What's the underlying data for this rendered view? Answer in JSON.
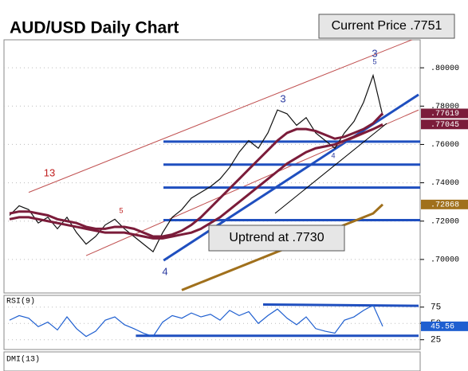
{
  "chart_data": [
    {
      "type": "line",
      "title": "AUD/USD Daily Chart",
      "annotations": [
        "Current Price .7751",
        "Uptrend at .7730"
      ],
      "wave_labels": [
        "3",
        "5",
        "13",
        "5",
        "3",
        "4",
        "4"
      ],
      "categories": [
        null,
        null,
        null,
        null,
        null,
        null,
        null,
        null,
        null,
        null,
        null,
        null,
        null,
        null,
        null,
        null,
        null,
        null,
        null,
        null,
        null,
        null,
        null,
        null,
        null,
        null,
        null,
        null,
        null,
        null,
        null,
        null,
        null,
        null,
        null,
        null,
        null,
        null,
        null,
        null
      ],
      "series": [
        {
          "color": "#111111",
          "values": [
            0.723,
            0.728,
            0.726,
            0.719,
            0.722,
            0.716,
            0.722,
            0.714,
            0.708,
            0.712,
            0.718,
            0.721,
            0.716,
            0.712,
            0.708,
            0.704,
            0.714,
            0.722,
            0.726,
            0.732,
            0.735,
            0.738,
            0.742,
            0.748,
            0.756,
            0.762,
            0.758,
            0.766,
            0.778,
            0.776,
            0.77,
            0.774,
            0.766,
            0.762,
            0.758,
            0.766,
            0.772,
            0.782,
            0.796,
            0.7751
          ]
        },
        {
          "color": "#7b1c3a",
          "values": [
            0.724,
            0.725,
            0.725,
            0.724,
            0.723,
            0.721,
            0.72,
            0.719,
            0.717,
            0.716,
            0.716,
            0.717,
            0.717,
            0.716,
            0.714,
            0.712,
            0.712,
            0.713,
            0.715,
            0.718,
            0.722,
            0.727,
            0.732,
            0.737,
            0.742,
            0.747,
            0.752,
            0.757,
            0.762,
            0.766,
            0.768,
            0.768,
            0.767,
            0.765,
            0.763,
            0.764,
            0.766,
            0.768,
            0.771,
            0.77619
          ],
          "value_labels": [
            null,
            null,
            null,
            null,
            null,
            null,
            null,
            null,
            null,
            null,
            null,
            null,
            null,
            null,
            null,
            null,
            null,
            null,
            null,
            null,
            null,
            null,
            null,
            null,
            null,
            null,
            null,
            null,
            null,
            null,
            null,
            null,
            null,
            null,
            null,
            null,
            null,
            null,
            null,
            ".77619"
          ]
        },
        {
          "color": "#7b1c3a",
          "values": [
            0.721,
            0.722,
            0.722,
            0.721,
            0.72,
            0.719,
            0.718,
            0.717,
            0.716,
            0.715,
            0.714,
            0.714,
            0.714,
            0.713,
            0.712,
            0.711,
            0.711,
            0.712,
            0.713,
            0.714,
            0.716,
            0.719,
            0.722,
            0.726,
            0.73,
            0.734,
            0.738,
            0.742,
            0.746,
            0.75,
            0.753,
            0.756,
            0.758,
            0.759,
            0.76,
            0.762,
            0.764,
            0.766,
            0.768,
            0.77045
          ],
          "value_labels": [
            null,
            null,
            null,
            null,
            null,
            null,
            null,
            null,
            null,
            null,
            null,
            null,
            null,
            null,
            null,
            null,
            null,
            null,
            null,
            null,
            null,
            null,
            null,
            null,
            null,
            null,
            null,
            null,
            null,
            null,
            null,
            null,
            null,
            null,
            null,
            null,
            null,
            null,
            null,
            ".77045"
          ]
        },
        {
          "color": "#a0701c",
          "values": [
            null,
            null,
            null,
            null,
            null,
            null,
            null,
            null,
            null,
            null,
            null,
            null,
            null,
            null,
            null,
            null,
            null,
            null,
            0.684,
            0.686,
            0.688,
            0.69,
            0.692,
            0.694,
            0.696,
            0.698,
            0.7,
            0.702,
            0.704,
            0.706,
            0.708,
            0.71,
            0.712,
            0.714,
            0.716,
            0.718,
            0.72,
            0.722,
            0.724,
            0.72868
          ],
          "value_labels": [
            null,
            null,
            null,
            null,
            null,
            null,
            null,
            null,
            null,
            null,
            null,
            null,
            null,
            null,
            null,
            null,
            null,
            null,
            null,
            null,
            null,
            null,
            null,
            null,
            null,
            null,
            null,
            null,
            null,
            null,
            null,
            null,
            null,
            null,
            null,
            null,
            null,
            null,
            null,
            ".72868"
          ]
        }
      ],
      "hlines": [
        0.7615,
        0.7495,
        0.7375,
        0.7205
      ],
      "hline_color": "#1f4fbf",
      "trendlines": [
        {
          "x": [
            16.1,
            42.75
          ],
          "y": [
            0.6995,
            0.786
          ],
          "color": "#1f4fbf"
        },
        {
          "x": [
            2,
            42.75
          ],
          "y": [
            0.735,
            0.816
          ],
          "color": "#c05050"
        },
        {
          "x": [
            8,
            42.75
          ],
          "y": [
            0.702,
            0.778
          ],
          "color": "#c05050"
        }
      ],
      "ylim": [
        0.6825,
        0.8146
      ],
      "yticks": [
        {
          "value": 0.7,
          "label": ".70000"
        },
        {
          "value": 0.72,
          "label": ".72000"
        },
        {
          "value": 0.74,
          "label": ".74000"
        },
        {
          "value": 0.76,
          "label": ".76000"
        },
        {
          "value": 0.78,
          "label": ".78000"
        },
        {
          "value": 0.8,
          "label": ".80000"
        }
      ]
    },
    {
      "type": "line",
      "title": "RSI(9)",
      "series": [
        {
          "color": "#1f5fd0",
          "values": [
            55,
            62,
            58,
            45,
            52,
            40,
            60,
            42,
            30,
            38,
            55,
            60,
            48,
            42,
            35,
            30,
            52,
            62,
            58,
            66,
            60,
            64,
            55,
            70,
            62,
            68,
            50,
            62,
            72,
            58,
            48,
            60,
            42,
            38,
            35,
            55,
            60,
            70,
            78,
            45.56
          ],
          "value_labels": [
            null,
            null,
            null,
            null,
            null,
            null,
            null,
            null,
            null,
            null,
            null,
            null,
            null,
            null,
            null,
            null,
            null,
            null,
            null,
            null,
            null,
            null,
            null,
            null,
            null,
            null,
            null,
            null,
            null,
            null,
            null,
            null,
            null,
            null,
            null,
            null,
            null,
            null,
            null,
            "45.56"
          ]
        }
      ],
      "trendlines": [
        {
          "x": [
            26.5,
            42.75
          ],
          "y": [
            79,
            77
          ],
          "color": "#1f4fbf"
        },
        {
          "x": [
            13.2,
            42.75
          ],
          "y": [
            31,
            31
          ],
          "color": "#1f4fbf"
        }
      ],
      "ylim": [
        10,
        93
      ],
      "yticks": [
        25,
        50,
        75
      ]
    },
    {
      "type": "line",
      "title": "DMI(13)"
    }
  ]
}
